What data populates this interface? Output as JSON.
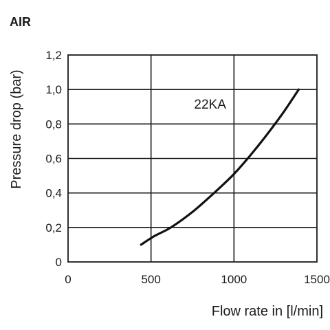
{
  "heading": "AIR",
  "chart_data": {
    "type": "line",
    "title": "AIR",
    "xlabel": "Flow rate in [l/min]",
    "ylabel": "Pressure drop (bar)",
    "xlim": [
      0,
      1500
    ],
    "ylim": [
      0,
      1.2
    ],
    "x_ticks": [
      0,
      500,
      1000,
      1500
    ],
    "x_tick_labels": [
      "0",
      "500",
      "1000",
      "1500"
    ],
    "y_ticks": [
      0,
      0.2,
      0.4,
      0.6,
      0.8,
      1.0,
      1.2
    ],
    "y_tick_labels": [
      "0",
      "0,2",
      "0,4",
      "0,6",
      "0,8",
      "1,0",
      "1,2"
    ],
    "grid": true,
    "series": [
      {
        "name": "22KA",
        "x": [
          440,
          520,
          620,
          750,
          880,
          1000,
          1100,
          1200,
          1300,
          1390
        ],
        "y": [
          0.1,
          0.15,
          0.2,
          0.29,
          0.4,
          0.51,
          0.62,
          0.74,
          0.87,
          1.0
        ]
      }
    ],
    "annotations": [
      {
        "text": "22KA",
        "x": 760,
        "y": 0.89
      }
    ]
  }
}
